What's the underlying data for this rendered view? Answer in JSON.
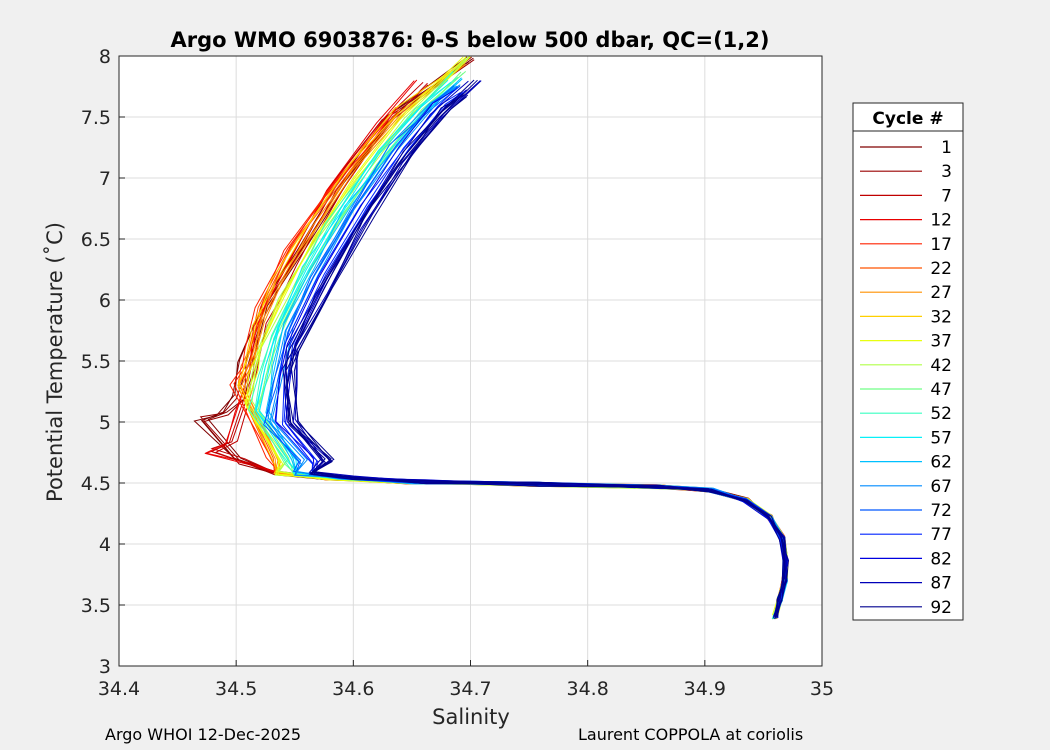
{
  "chart_data": {
    "type": "line",
    "title": "Argo WMO 6903876: θ-S below 500 dbar,  QC=(1,2)",
    "xlabel": "Salinity",
    "ylabel": "Potential Temperature (˚C)",
    "xlim": [
      34.4,
      35
    ],
    "ylim": [
      3,
      8
    ],
    "xticks": [
      34.4,
      34.5,
      34.6,
      34.7,
      34.8,
      34.9,
      35
    ],
    "xtick_labels": [
      "34.4",
      "34.5",
      "34.6",
      "34.7",
      "34.8",
      "34.9",
      "35"
    ],
    "yticks": [
      3,
      3.5,
      4,
      4.5,
      5,
      5.5,
      6,
      6.5,
      7,
      7.5,
      8
    ],
    "ytick_labels": [
      "3",
      "3.5",
      "4",
      "4.5",
      "5",
      "5.5",
      "6",
      "6.5",
      "7",
      "7.5",
      "8"
    ],
    "grid": true,
    "colormap": "jet",
    "legend": {
      "title": "Cycle #",
      "position": "outside-right",
      "entries": [
        "1",
        "3",
        "7",
        "12",
        "17",
        "22",
        "27",
        "32",
        "37",
        "42",
        "47",
        "52",
        "57",
        "62",
        "67",
        "72",
        "77",
        "82",
        "87",
        "92"
      ],
      "colors": [
        "#800000",
        "#9a0000",
        "#c00000",
        "#e80000",
        "#ff2200",
        "#ff5500",
        "#ff9000",
        "#ffd000",
        "#e8ff10",
        "#b0ff48",
        "#70ff88",
        "#38ffc0",
        "#08f0f8",
        "#00c0ff",
        "#008cff",
        "#0058ff",
        "#0024ff",
        "#0000e0",
        "#0000b8",
        "#00008f"
      ]
    },
    "series": [
      {
        "name": "1",
        "color": "#800000",
        "points": [
          [
            34.472,
            5.02
          ],
          [
            34.49,
            5.06
          ],
          [
            34.502,
            5.2
          ],
          [
            34.508,
            5.5
          ],
          [
            34.525,
            5.95
          ],
          [
            34.555,
            6.4
          ],
          [
            34.59,
            6.95
          ],
          [
            34.632,
            7.5
          ],
          [
            34.7,
            7.97
          ]
        ]
      },
      {
        "name": "7",
        "color": "#c00000",
        "points": [
          [
            34.48,
            4.76
          ],
          [
            34.495,
            4.82
          ],
          [
            34.505,
            5.1
          ],
          [
            34.515,
            5.4
          ],
          [
            34.522,
            5.8
          ],
          [
            34.548,
            6.3
          ],
          [
            34.585,
            6.9
          ],
          [
            34.625,
            7.45
          ],
          [
            34.66,
            7.78
          ]
        ]
      },
      {
        "name": "17",
        "color": "#ff2200",
        "points": [
          [
            34.499,
            5.31
          ],
          [
            34.507,
            5.45
          ],
          [
            34.512,
            5.6
          ],
          [
            34.52,
            5.95
          ],
          [
            34.545,
            6.42
          ],
          [
            34.576,
            6.86
          ],
          [
            34.61,
            7.25
          ],
          [
            34.637,
            7.58
          ]
        ]
      },
      {
        "name": "27",
        "color": "#ff9000",
        "points": [
          [
            34.505,
            5.3
          ],
          [
            34.512,
            5.5
          ],
          [
            34.52,
            5.8
          ],
          [
            34.535,
            6.15
          ],
          [
            34.565,
            6.6
          ],
          [
            34.6,
            7.1
          ],
          [
            34.64,
            7.55
          ],
          [
            34.695,
            7.95
          ]
        ]
      },
      {
        "name": "37",
        "color": "#e8ff10",
        "points": [
          [
            34.51,
            5.15
          ],
          [
            34.516,
            5.4
          ],
          [
            34.522,
            5.6
          ],
          [
            34.54,
            6.0
          ],
          [
            34.57,
            6.5
          ],
          [
            34.605,
            7.0
          ],
          [
            34.645,
            7.5
          ],
          [
            34.7,
            7.98
          ]
        ]
      },
      {
        "name": "47",
        "color": "#70ff88",
        "points": [
          [
            34.515,
            5.1
          ],
          [
            34.522,
            5.4
          ],
          [
            34.53,
            5.7
          ],
          [
            34.55,
            6.1
          ],
          [
            34.58,
            6.6
          ],
          [
            34.615,
            7.1
          ],
          [
            34.655,
            7.55
          ],
          [
            34.688,
            7.85
          ]
        ]
      },
      {
        "name": "57",
        "color": "#08f0f8",
        "points": [
          [
            34.52,
            5.1
          ],
          [
            34.527,
            5.45
          ],
          [
            34.536,
            5.8
          ],
          [
            34.56,
            6.25
          ],
          [
            34.59,
            6.75
          ],
          [
            34.625,
            7.2
          ],
          [
            34.662,
            7.6
          ],
          [
            34.685,
            7.8
          ]
        ]
      },
      {
        "name": "67",
        "color": "#008cff",
        "points": [
          [
            34.528,
            5.0
          ],
          [
            34.534,
            5.3
          ],
          [
            34.545,
            5.75
          ],
          [
            34.568,
            6.2
          ],
          [
            34.6,
            6.75
          ],
          [
            34.635,
            7.25
          ],
          [
            34.67,
            7.62
          ],
          [
            34.69,
            7.75
          ]
        ]
      },
      {
        "name": "77",
        "color": "#0024ff",
        "points": [
          [
            34.54,
            5.0
          ],
          [
            34.542,
            5.35
          ],
          [
            34.548,
            5.65
          ],
          [
            34.575,
            6.2
          ],
          [
            34.61,
            6.78
          ],
          [
            34.645,
            7.25
          ],
          [
            34.675,
            7.6
          ],
          [
            34.695,
            7.72
          ]
        ]
      },
      {
        "name": "87",
        "color": "#0000b8",
        "points": [
          [
            34.548,
            5.0
          ],
          [
            34.546,
            5.3
          ],
          [
            34.55,
            5.6
          ],
          [
            34.572,
            6.05
          ],
          [
            34.605,
            6.6
          ],
          [
            34.64,
            7.1
          ],
          [
            34.672,
            7.5
          ],
          [
            34.705,
            7.8
          ]
        ]
      },
      {
        "name": "92",
        "color": "#00008f",
        "points": [
          [
            34.55,
            5.0
          ],
          [
            34.545,
            5.42
          ],
          [
            34.552,
            5.56
          ],
          [
            34.58,
            6.1
          ],
          [
            34.615,
            6.7
          ],
          [
            34.65,
            7.2
          ],
          [
            34.68,
            7.55
          ],
          [
            34.698,
            7.68
          ]
        ]
      }
    ],
    "deep_branch": {
      "s": [
        34.565,
        34.6,
        34.66,
        34.76,
        34.86,
        34.905,
        34.935,
        34.955,
        34.966,
        34.969,
        34.968,
        34.964,
        34.96
      ],
      "t": [
        4.58,
        4.54,
        4.51,
        4.49,
        4.47,
        4.44,
        4.36,
        4.22,
        4.05,
        3.85,
        3.7,
        3.55,
        3.4
      ],
      "min_note": "deepest point near 34.958, 3.34"
    }
  },
  "footer": {
    "left": "Argo WHOI 12-Dec-2025",
    "right": "Laurent COPPOLA at coriolis"
  }
}
